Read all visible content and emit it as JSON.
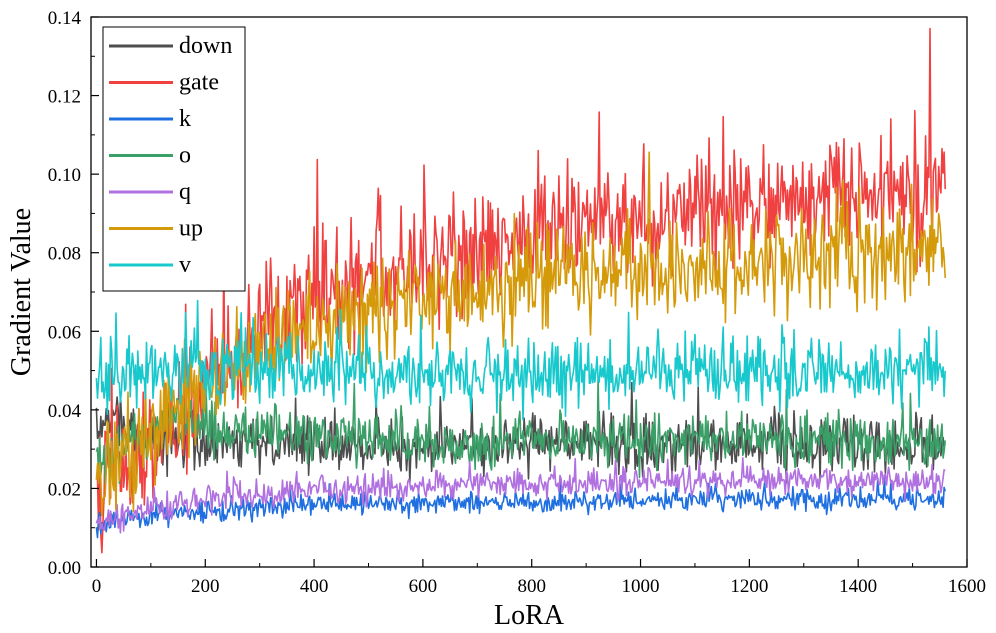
{
  "chart_data": {
    "type": "line",
    "title": "",
    "xlabel": "LoRA",
    "ylabel": "Gradient Value",
    "xlim": [
      -10,
      1600
    ],
    "ylim": [
      0,
      0.14
    ],
    "xticks": [
      0,
      200,
      400,
      600,
      800,
      1000,
      1200,
      1400,
      1600
    ],
    "yticks": [
      0.0,
      0.02,
      0.04,
      0.06,
      0.08,
      0.1,
      0.12,
      0.14
    ],
    "xtick_labels": [
      "0",
      "200",
      "400",
      "600",
      "800",
      "1000",
      "1200",
      "1400",
      "1600"
    ],
    "ytick_labels": [
      "0.00",
      "0.02",
      "0.04",
      "0.06",
      "0.08",
      "0.10",
      "0.12",
      "0.14"
    ],
    "legend_position": "top-left",
    "grid": false,
    "series": [
      {
        "name": "down",
        "color": "#4d4d4d",
        "x": [
          0,
          25,
          50,
          100,
          150,
          200,
          300,
          400,
          600,
          800,
          1000,
          1200,
          1400,
          1560
        ],
        "y": [
          0.035,
          0.04,
          0.035,
          0.033,
          0.032,
          0.032,
          0.031,
          0.031,
          0.031,
          0.031,
          0.031,
          0.031,
          0.031,
          0.031
        ],
        "noise": 0.0035
      },
      {
        "name": "gate",
        "color": "#f04040",
        "x": [
          0,
          25,
          50,
          100,
          150,
          200,
          250,
          300,
          400,
          500,
          600,
          700,
          800,
          900,
          1000,
          1100,
          1200,
          1300,
          1400,
          1500,
          1560
        ],
        "y": [
          0.017,
          0.024,
          0.026,
          0.031,
          0.037,
          0.044,
          0.052,
          0.059,
          0.068,
          0.073,
          0.077,
          0.08,
          0.085,
          0.087,
          0.089,
          0.091,
          0.092,
          0.093,
          0.094,
          0.095,
          0.097
        ],
        "noise": 0.0075
      },
      {
        "name": "k",
        "color": "#1f6fe0",
        "x": [
          0,
          50,
          100,
          200,
          300,
          400,
          600,
          800,
          1000,
          1200,
          1400,
          1560
        ],
        "y": [
          0.01,
          0.012,
          0.013,
          0.014,
          0.015,
          0.016,
          0.0163,
          0.0166,
          0.017,
          0.017,
          0.0172,
          0.0172
        ],
        "noise": 0.0014
      },
      {
        "name": "o",
        "color": "#3aa067",
        "x": [
          0,
          25,
          50,
          100,
          150,
          200,
          300,
          400,
          600,
          800,
          1000,
          1200,
          1400,
          1560
        ],
        "y": [
          0.025,
          0.028,
          0.031,
          0.035,
          0.037,
          0.036,
          0.034,
          0.033,
          0.032,
          0.032,
          0.032,
          0.032,
          0.032,
          0.033
        ],
        "noise": 0.0032
      },
      {
        "name": "q",
        "color": "#b070e0",
        "x": [
          0,
          50,
          100,
          200,
          300,
          400,
          600,
          800,
          1000,
          1200,
          1400,
          1560
        ],
        "y": [
          0.01,
          0.013,
          0.015,
          0.017,
          0.0185,
          0.02,
          0.0205,
          0.021,
          0.0215,
          0.022,
          0.0222,
          0.022
        ],
        "noise": 0.0018
      },
      {
        "name": "up",
        "color": "#d49a0a",
        "x": [
          0,
          25,
          50,
          100,
          150,
          200,
          250,
          300,
          400,
          500,
          600,
          700,
          800,
          900,
          1000,
          1100,
          1200,
          1300,
          1400,
          1500,
          1560
        ],
        "y": [
          0.023,
          0.025,
          0.028,
          0.033,
          0.039,
          0.045,
          0.051,
          0.056,
          0.062,
          0.065,
          0.068,
          0.07,
          0.072,
          0.074,
          0.075,
          0.076,
          0.077,
          0.078,
          0.079,
          0.079,
          0.081
        ],
        "noise": 0.0065
      },
      {
        "name": "v",
        "color": "#17c8cc",
        "x": [
          0,
          25,
          50,
          100,
          150,
          200,
          300,
          400,
          600,
          800,
          1000,
          1200,
          1400,
          1560
        ],
        "y": [
          0.043,
          0.047,
          0.048,
          0.049,
          0.05,
          0.051,
          0.051,
          0.05,
          0.049,
          0.049,
          0.049,
          0.05,
          0.05,
          0.051
        ],
        "noise": 0.0045
      }
    ]
  }
}
